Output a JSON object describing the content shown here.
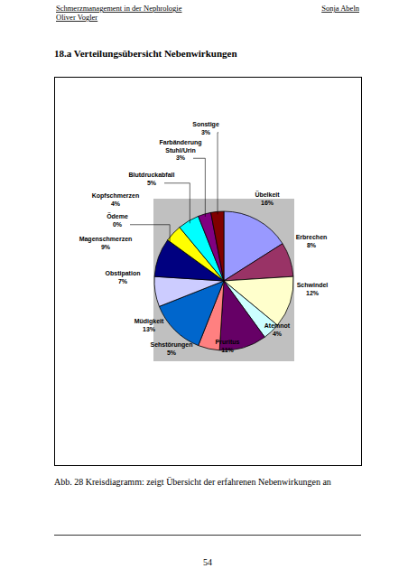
{
  "header": {
    "title": "Schmerzmanagement in der Nephrologie",
    "author_right": "Sonja Abeln",
    "author_left": "Oliver Vogler"
  },
  "section_title": "18.a Verteilungsübersicht Nebenwirkungen",
  "chart_data": {
    "type": "pie",
    "categories": [
      "Übelkeit",
      "Erbrechen",
      "Schwindel",
      "Atemnot",
      "Pruritus",
      "Sehstörungen",
      "Müdigkeit",
      "Obstipation",
      "Magenschmerzen",
      "Ödeme",
      "Kopfschmerzen",
      "Blutdruckabfall",
      "Farbänderung Stuhl/Urin",
      "Sonstige"
    ],
    "values": [
      16,
      8,
      12,
      4,
      11,
      5,
      13,
      7,
      9,
      0,
      4,
      5,
      3,
      3
    ],
    "value_labels": [
      "16%",
      "8%",
      "12%",
      "4%",
      "11%",
      "5%",
      "13%",
      "7%",
      "9%",
      "0%",
      "4%",
      "5%",
      "3%",
      "3%"
    ],
    "colors": [
      "#9999ff",
      "#993366",
      "#ffffcc",
      "#ccffff",
      "#660066",
      "#ff8080",
      "#0066cc",
      "#ccccff",
      "#000080",
      "#ff00ff",
      "#ffff00",
      "#00ffff",
      "#800080",
      "#800000"
    ],
    "data_labels": true
  },
  "caption": "Abb. 28 Kreisdiagramm: zeigt Übersicht der erfahrenen Nebenwirkungen an",
  "page_number": "54"
}
